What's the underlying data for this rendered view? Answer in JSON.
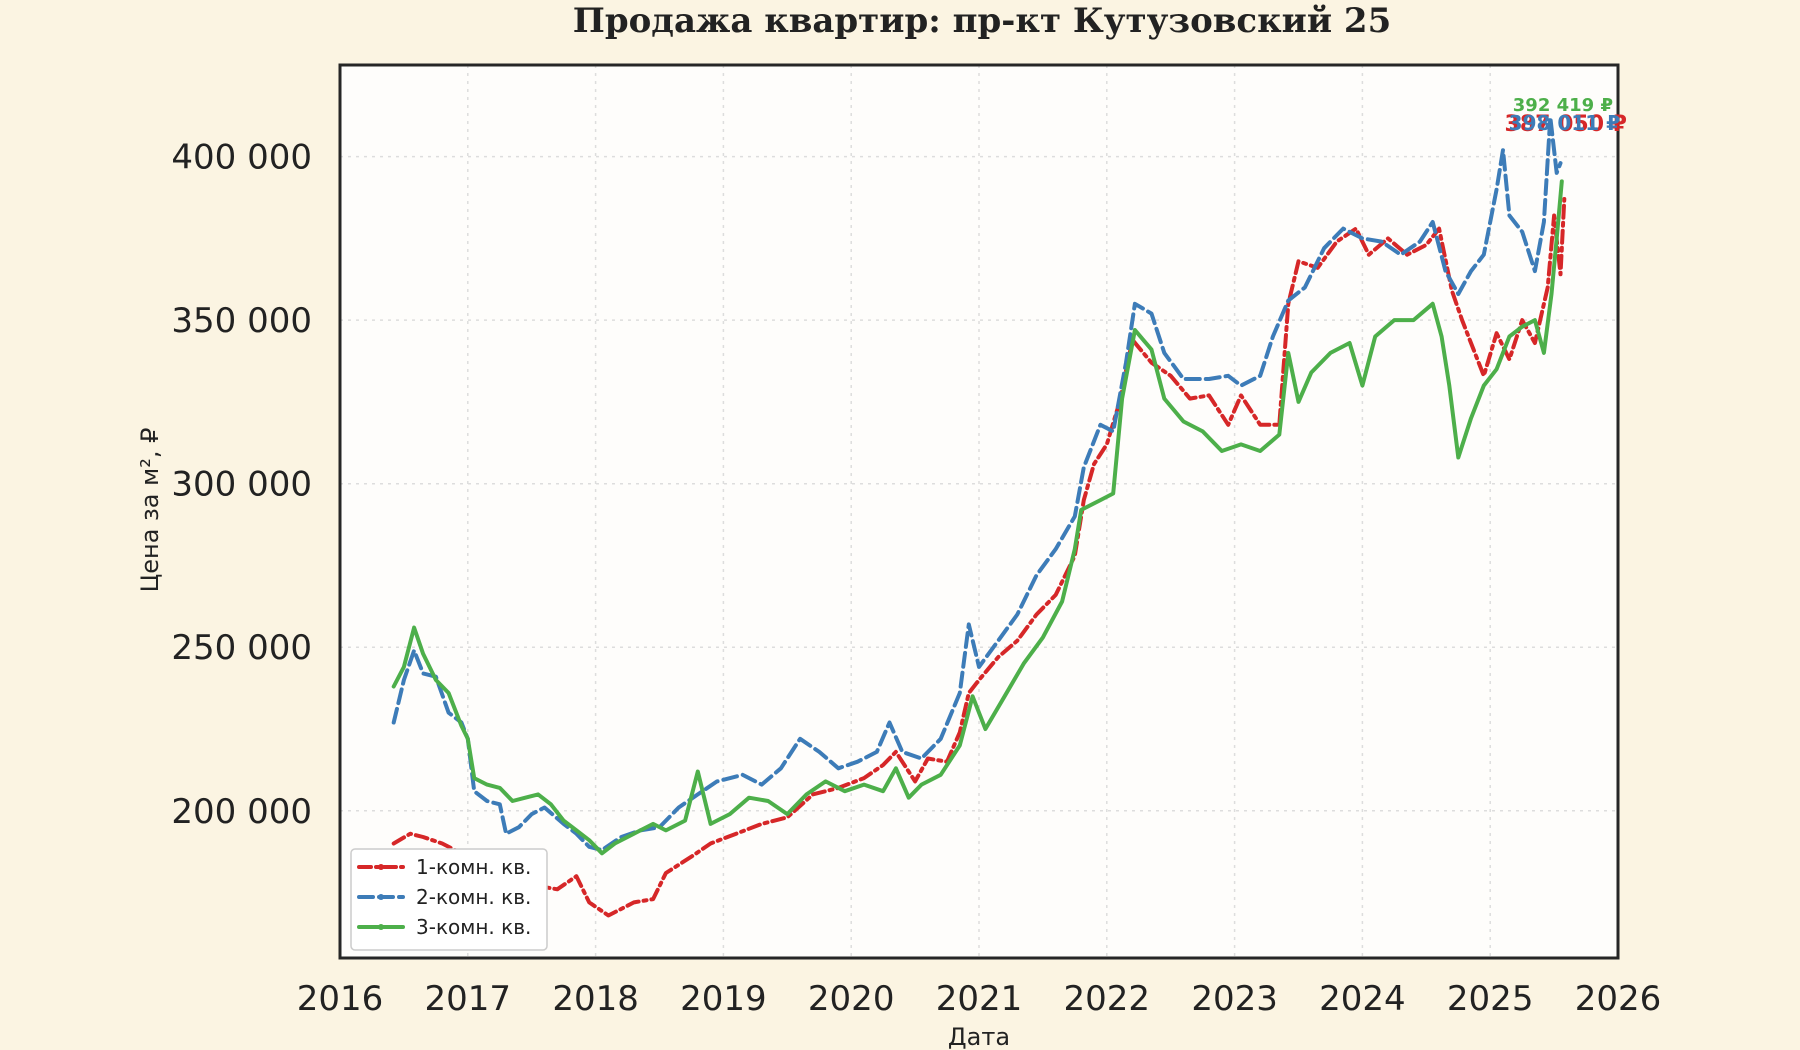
{
  "chart_data": {
    "type": "line",
    "title": "Продажа квартир: пр-кт Кутузовский 25",
    "xlabel": "Дата",
    "ylabel": "Цена за м², ₽",
    "xlim": [
      2016,
      2026
    ],
    "ylim": [
      155000,
      428000
    ],
    "x_ticks": [
      2016,
      2017,
      2018,
      2019,
      2020,
      2021,
      2022,
      2023,
      2024,
      2025,
      2026
    ],
    "x_tick_labels": [
      "2016",
      "2017",
      "2018",
      "2019",
      "2020",
      "2021",
      "2022",
      "2023",
      "2024",
      "2025",
      "2026"
    ],
    "y_ticks": [
      200000,
      250000,
      300000,
      350000,
      400000
    ],
    "y_tick_labels": [
      "200 000",
      "250 000",
      "300 000",
      "350 000",
      "400 000"
    ],
    "grid": true,
    "legend_position": "lower-left",
    "series": [
      {
        "name": "1-комн. кв.",
        "color": "#d62728",
        "line_style": "dashdot",
        "end_label": "387 050 ₽",
        "points": [
          [
            2016.42,
            190000
          ],
          [
            2016.55,
            193000
          ],
          [
            2016.65,
            192000
          ],
          [
            2016.8,
            190000
          ],
          [
            2017.0,
            186000
          ],
          [
            2017.3,
            183000
          ],
          [
            2017.55,
            177000
          ],
          [
            2017.7,
            176000
          ],
          [
            2017.85,
            180000
          ],
          [
            2017.95,
            172000
          ],
          [
            2018.1,
            168000
          ],
          [
            2018.3,
            172000
          ],
          [
            2018.45,
            173000
          ],
          [
            2018.55,
            181000
          ],
          [
            2018.75,
            186000
          ],
          [
            2018.9,
            190000
          ],
          [
            2019.1,
            193000
          ],
          [
            2019.3,
            196000
          ],
          [
            2019.5,
            198000
          ],
          [
            2019.7,
            205000
          ],
          [
            2019.9,
            207000
          ],
          [
            2020.1,
            210000
          ],
          [
            2020.25,
            214000
          ],
          [
            2020.35,
            218000
          ],
          [
            2020.5,
            209000
          ],
          [
            2020.6,
            216000
          ],
          [
            2020.75,
            215000
          ],
          [
            2020.85,
            224000
          ],
          [
            2020.92,
            236000
          ],
          [
            2021.0,
            240000
          ],
          [
            2021.15,
            247000
          ],
          [
            2021.3,
            252000
          ],
          [
            2021.45,
            260000
          ],
          [
            2021.6,
            266000
          ],
          [
            2021.75,
            278000
          ],
          [
            2021.82,
            295000
          ],
          [
            2021.9,
            306000
          ],
          [
            2022.0,
            312000
          ],
          [
            2022.1,
            325000
          ],
          [
            2022.2,
            344000
          ],
          [
            2022.35,
            337000
          ],
          [
            2022.5,
            333000
          ],
          [
            2022.65,
            326000
          ],
          [
            2022.8,
            327000
          ],
          [
            2022.95,
            318000
          ],
          [
            2023.05,
            327000
          ],
          [
            2023.2,
            318000
          ],
          [
            2023.35,
            318000
          ],
          [
            2023.42,
            355000
          ],
          [
            2023.5,
            368000
          ],
          [
            2023.65,
            366000
          ],
          [
            2023.8,
            374000
          ],
          [
            2023.95,
            378000
          ],
          [
            2024.05,
            370000
          ],
          [
            2024.2,
            375000
          ],
          [
            2024.35,
            370000
          ],
          [
            2024.5,
            373000
          ],
          [
            2024.6,
            378000
          ],
          [
            2024.7,
            359000
          ],
          [
            2024.78,
            350000
          ],
          [
            2024.85,
            343000
          ],
          [
            2024.95,
            333000
          ],
          [
            2025.05,
            346000
          ],
          [
            2025.15,
            338000
          ],
          [
            2025.25,
            350000
          ],
          [
            2025.35,
            343000
          ],
          [
            2025.45,
            360000
          ],
          [
            2025.5,
            382000
          ],
          [
            2025.55,
            364000
          ],
          [
            2025.58,
            387050
          ]
        ]
      },
      {
        "name": "2-комн. кв.",
        "color": "#3d7cb8",
        "line_style": "dashed",
        "end_label": "398 011 ₽",
        "points": [
          [
            2016.42,
            227000
          ],
          [
            2016.5,
            240000
          ],
          [
            2016.58,
            249000
          ],
          [
            2016.65,
            242000
          ],
          [
            2016.75,
            241000
          ],
          [
            2016.85,
            230000
          ],
          [
            2016.95,
            227000
          ],
          [
            2017.0,
            222000
          ],
          [
            2017.05,
            206000
          ],
          [
            2017.15,
            203000
          ],
          [
            2017.25,
            202000
          ],
          [
            2017.3,
            193000
          ],
          [
            2017.4,
            195000
          ],
          [
            2017.5,
            199000
          ],
          [
            2017.6,
            201000
          ],
          [
            2017.75,
            196000
          ],
          [
            2017.85,
            193000
          ],
          [
            2017.95,
            189000
          ],
          [
            2018.05,
            188000
          ],
          [
            2018.2,
            192000
          ],
          [
            2018.35,
            194000
          ],
          [
            2018.5,
            195000
          ],
          [
            2018.65,
            201000
          ],
          [
            2018.8,
            205000
          ],
          [
            2018.95,
            209000
          ],
          [
            2019.15,
            211000
          ],
          [
            2019.3,
            208000
          ],
          [
            2019.45,
            213000
          ],
          [
            2019.6,
            222000
          ],
          [
            2019.75,
            218000
          ],
          [
            2019.9,
            213000
          ],
          [
            2020.05,
            215000
          ],
          [
            2020.2,
            218000
          ],
          [
            2020.3,
            227000
          ],
          [
            2020.4,
            218000
          ],
          [
            2020.55,
            216000
          ],
          [
            2020.7,
            222000
          ],
          [
            2020.85,
            236000
          ],
          [
            2020.92,
            257000
          ],
          [
            2021.0,
            244000
          ],
          [
            2021.15,
            252000
          ],
          [
            2021.3,
            260000
          ],
          [
            2021.45,
            272000
          ],
          [
            2021.6,
            280000
          ],
          [
            2021.75,
            290000
          ],
          [
            2021.82,
            305000
          ],
          [
            2021.95,
            318000
          ],
          [
            2022.05,
            316000
          ],
          [
            2022.15,
            337000
          ],
          [
            2022.22,
            355000
          ],
          [
            2022.35,
            352000
          ],
          [
            2022.45,
            340000
          ],
          [
            2022.6,
            332000
          ],
          [
            2022.8,
            332000
          ],
          [
            2022.95,
            333000
          ],
          [
            2023.05,
            330000
          ],
          [
            2023.2,
            333000
          ],
          [
            2023.3,
            345000
          ],
          [
            2023.42,
            356000
          ],
          [
            2023.55,
            360000
          ],
          [
            2023.7,
            372000
          ],
          [
            2023.85,
            378000
          ],
          [
            2024.0,
            375000
          ],
          [
            2024.15,
            374000
          ],
          [
            2024.3,
            370000
          ],
          [
            2024.45,
            374000
          ],
          [
            2024.55,
            380000
          ],
          [
            2024.65,
            365000
          ],
          [
            2024.75,
            358000
          ],
          [
            2024.85,
            365000
          ],
          [
            2024.95,
            370000
          ],
          [
            2025.05,
            390000
          ],
          [
            2025.1,
            402000
          ],
          [
            2025.15,
            382000
          ],
          [
            2025.25,
            377000
          ],
          [
            2025.35,
            365000
          ],
          [
            2025.42,
            380000
          ],
          [
            2025.47,
            412000
          ],
          [
            2025.52,
            395000
          ],
          [
            2025.55,
            398011
          ]
        ]
      },
      {
        "name": "3-комн. кв.",
        "color": "#4daf4a",
        "line_style": "solid",
        "end_label": "392 419 ₽",
        "points": [
          [
            2016.42,
            238000
          ],
          [
            2016.5,
            244000
          ],
          [
            2016.58,
            256000
          ],
          [
            2016.65,
            248000
          ],
          [
            2016.75,
            240000
          ],
          [
            2016.85,
            236000
          ],
          [
            2016.95,
            226000
          ],
          [
            2017.0,
            222000
          ],
          [
            2017.05,
            210000
          ],
          [
            2017.15,
            208000
          ],
          [
            2017.25,
            207000
          ],
          [
            2017.35,
            203000
          ],
          [
            2017.45,
            204000
          ],
          [
            2017.55,
            205000
          ],
          [
            2017.65,
            202000
          ],
          [
            2017.75,
            197000
          ],
          [
            2017.85,
            194000
          ],
          [
            2017.95,
            191000
          ],
          [
            2018.05,
            187000
          ],
          [
            2018.15,
            190000
          ],
          [
            2018.3,
            193000
          ],
          [
            2018.45,
            196000
          ],
          [
            2018.55,
            194000
          ],
          [
            2018.7,
            197000
          ],
          [
            2018.8,
            212000
          ],
          [
            2018.9,
            196000
          ],
          [
            2019.05,
            199000
          ],
          [
            2019.2,
            204000
          ],
          [
            2019.35,
            203000
          ],
          [
            2019.5,
            199000
          ],
          [
            2019.65,
            205000
          ],
          [
            2019.8,
            209000
          ],
          [
            2019.95,
            206000
          ],
          [
            2020.1,
            208000
          ],
          [
            2020.25,
            206000
          ],
          [
            2020.35,
            213000
          ],
          [
            2020.45,
            204000
          ],
          [
            2020.55,
            208000
          ],
          [
            2020.7,
            211000
          ],
          [
            2020.85,
            220000
          ],
          [
            2020.95,
            235000
          ],
          [
            2021.05,
            225000
          ],
          [
            2021.2,
            235000
          ],
          [
            2021.35,
            245000
          ],
          [
            2021.5,
            253000
          ],
          [
            2021.65,
            264000
          ],
          [
            2021.75,
            280000
          ],
          [
            2021.8,
            292000
          ],
          [
            2021.95,
            295000
          ],
          [
            2022.05,
            297000
          ],
          [
            2022.12,
            326000
          ],
          [
            2022.22,
            347000
          ],
          [
            2022.35,
            341000
          ],
          [
            2022.45,
            326000
          ],
          [
            2022.6,
            319000
          ],
          [
            2022.75,
            316000
          ],
          [
            2022.9,
            310000
          ],
          [
            2023.05,
            312000
          ],
          [
            2023.2,
            310000
          ],
          [
            2023.35,
            315000
          ],
          [
            2023.42,
            340000
          ],
          [
            2023.5,
            325000
          ],
          [
            2023.6,
            334000
          ],
          [
            2023.75,
            340000
          ],
          [
            2023.9,
            343000
          ],
          [
            2024.0,
            330000
          ],
          [
            2024.1,
            345000
          ],
          [
            2024.25,
            350000
          ],
          [
            2024.4,
            350000
          ],
          [
            2024.55,
            355000
          ],
          [
            2024.62,
            345000
          ],
          [
            2024.68,
            330000
          ],
          [
            2024.75,
            308000
          ],
          [
            2024.85,
            320000
          ],
          [
            2024.95,
            330000
          ],
          [
            2025.05,
            335000
          ],
          [
            2025.15,
            345000
          ],
          [
            2025.25,
            348000
          ],
          [
            2025.35,
            350000
          ],
          [
            2025.42,
            340000
          ],
          [
            2025.48,
            358000
          ],
          [
            2025.52,
            375000
          ],
          [
            2025.56,
            392419
          ]
        ]
      }
    ]
  }
}
